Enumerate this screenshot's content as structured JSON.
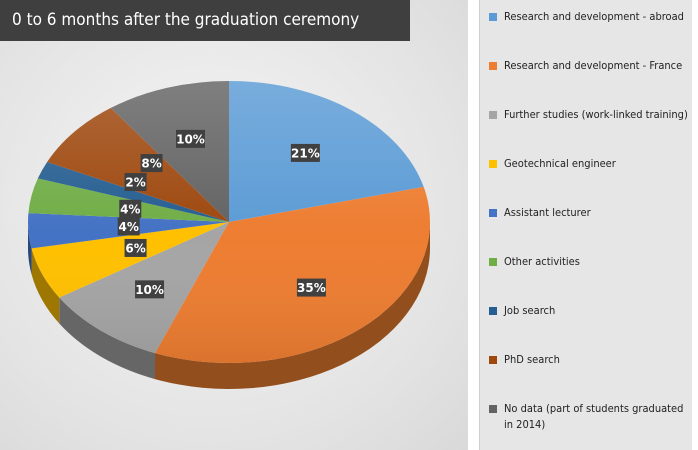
{
  "chart_data": {
    "type": "pie",
    "title": "0 to 6 months after the graduation ceremony",
    "legend_position": "right",
    "slices": [
      {
        "label": "Research and development - abroad",
        "value": 21,
        "display": "21%",
        "color": "#5b9bd5"
      },
      {
        "label": "Research and development - France",
        "value": 35,
        "display": "35%",
        "color": "#ed7d31"
      },
      {
        "label": "Further studies (work-linked training)",
        "value": 10,
        "display": "10%",
        "color": "#a5a5a5"
      },
      {
        "label": "Geotechnical engineer",
        "value": 6,
        "display": "6%",
        "color": "#ffc000"
      },
      {
        "label": "Assistant lecturer",
        "value": 4,
        "display": "4%",
        "color": "#4472c4"
      },
      {
        "label": "Other activities",
        "value": 4,
        "display": "4%",
        "color": "#70ad47"
      },
      {
        "label": "Job search",
        "value": 2,
        "display": "2%",
        "color": "#255e91"
      },
      {
        "label": "PhD search",
        "value": 8,
        "display": "8%",
        "color": "#9e480e"
      },
      {
        "label": "No data (part of students graduated in 2014)",
        "value": 10,
        "display": "10%",
        "color": "#636363"
      }
    ]
  }
}
